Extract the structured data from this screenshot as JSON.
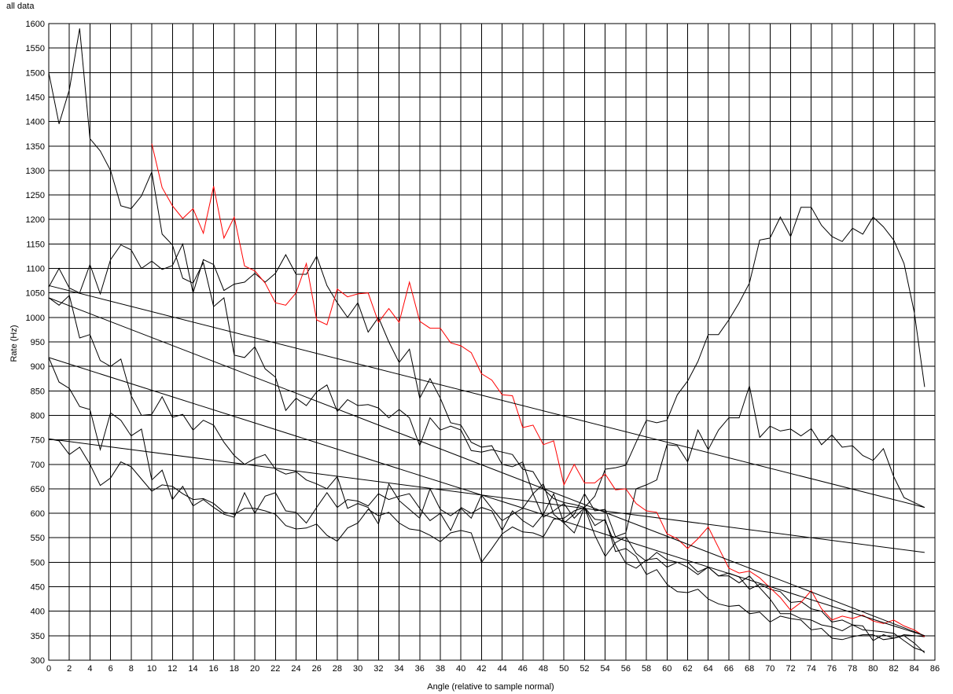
{
  "chart_data": {
    "type": "line",
    "title": "all data",
    "xlabel": "Angle (relative to sample normal)",
    "ylabel": "Rate (Hz)",
    "xlim": [
      0,
      86
    ],
    "ylim": [
      300,
      1600
    ],
    "x_ticks": [
      0,
      2,
      4,
      6,
      8,
      10,
      12,
      14,
      16,
      18,
      20,
      22,
      24,
      26,
      28,
      30,
      32,
      34,
      36,
      38,
      40,
      42,
      44,
      46,
      48,
      50,
      52,
      54,
      56,
      58,
      60,
      62,
      64,
      66,
      68,
      70,
      72,
      74,
      76,
      78,
      80,
      82,
      84,
      86
    ],
    "y_ticks": [
      300,
      350,
      400,
      450,
      500,
      550,
      600,
      650,
      700,
      750,
      800,
      850,
      900,
      950,
      1000,
      1050,
      1100,
      1150,
      1200,
      1250,
      1300,
      1350,
      1400,
      1450,
      1500,
      1550,
      1600
    ],
    "grid": true,
    "legend": "none",
    "colors": {
      "default": "#000000",
      "highlight": "#ff0000",
      "grid": "#000000"
    },
    "series": [
      {
        "color": "#000000",
        "x": [
          0,
          1,
          2,
          3,
          4,
          5,
          6,
          7,
          8,
          9,
          10,
          11,
          12,
          13,
          14,
          15,
          16,
          17,
          18,
          19,
          20,
          21,
          22,
          23,
          24,
          25,
          26,
          27,
          28,
          29,
          30,
          31,
          32,
          33,
          34,
          35,
          36,
          37,
          38,
          39,
          40,
          41,
          42,
          43,
          44,
          45,
          46,
          47,
          48,
          49,
          50,
          51,
          52,
          53,
          54,
          55,
          56,
          57,
          58,
          59,
          60,
          61,
          62,
          63,
          64,
          65,
          66,
          67,
          68,
          69,
          70,
          71,
          72,
          73,
          74,
          75,
          76,
          77,
          78,
          79,
          80,
          81,
          82,
          83,
          84,
          85
        ],
        "y": [
          1500,
          1395,
          1465,
          1590,
          1365,
          1340,
          1300,
          1228,
          1222,
          1248,
          1297,
          1170,
          1148,
          1080,
          1070,
          1112,
          1022,
          1040,
          923,
          918,
          940,
          895,
          878,
          810,
          835,
          820,
          848,
          862,
          808,
          832,
          820,
          822,
          815,
          795,
          812,
          795,
          738,
          795,
          770,
          778,
          770,
          728,
          725,
          730,
          725,
          720,
          690,
          685,
          650,
          630,
          622,
          618,
          612,
          635,
          690,
          693,
          698,
          745,
          790,
          785,
          790,
          842,
          870,
          910,
          965,
          965,
          995,
          1030,
          1070,
          1158,
          1162,
          1205,
          1165,
          1225,
          1225,
          1188,
          1165,
          1155,
          1182,
          1170,
          1205,
          1185,
          1158,
          1110,
          1010,
          858
        ]
      },
      {
        "color": "#000000",
        "x": [
          0,
          1,
          2,
          3,
          4,
          5,
          6,
          7,
          8,
          9,
          10,
          11,
          12,
          13,
          14,
          15,
          16,
          17,
          18,
          19,
          20,
          21,
          22,
          23,
          24,
          25,
          26,
          27,
          28,
          29,
          30,
          31,
          32,
          33,
          34,
          35,
          36,
          37,
          38,
          39,
          40,
          41,
          42,
          43,
          44,
          45,
          46,
          47,
          48,
          49,
          50,
          51,
          52,
          53,
          54,
          55,
          56,
          57,
          58,
          59,
          60,
          61,
          62,
          63,
          64,
          65,
          66,
          67,
          68,
          69,
          70,
          71,
          72,
          73,
          74,
          75,
          76,
          77,
          78,
          79,
          80,
          81,
          82,
          83,
          84,
          85
        ],
        "y": [
          1062,
          1100,
          1060,
          1050,
          1108,
          1048,
          1118,
          1148,
          1138,
          1100,
          1115,
          1098,
          1106,
          1150,
          1050,
          1118,
          1108,
          1055,
          1068,
          1072,
          1090,
          1072,
          1090,
          1128,
          1088,
          1088,
          1125,
          1065,
          1030,
          1000,
          1030,
          970,
          1000,
          950,
          908,
          935,
          835,
          875,
          835,
          785,
          780,
          745,
          735,
          738,
          700,
          695,
          705,
          640,
          660,
          598,
          580,
          598,
          640,
          605,
          608,
          552,
          560,
          650,
          658,
          668,
          740,
          738,
          705,
          770,
          730,
          770,
          795,
          795,
          860,
          755,
          778,
          768,
          772,
          758,
          773,
          740,
          760,
          735,
          738,
          718,
          708,
          732,
          675,
          632,
          622,
          612
        ]
      },
      {
        "color": "#000000",
        "x": [
          0,
          1,
          2,
          3,
          4,
          5,
          6,
          7,
          8,
          9,
          10,
          11,
          12,
          13,
          14,
          15,
          16,
          17,
          18,
          19,
          20,
          21,
          22,
          23,
          24,
          25,
          26,
          27,
          28,
          29,
          30,
          31,
          32,
          33,
          34,
          35,
          36,
          37,
          38,
          39,
          40,
          41,
          42,
          43,
          44,
          45,
          46,
          47,
          48,
          49,
          50,
          51,
          52,
          53,
          54,
          55,
          56,
          57,
          58,
          59,
          60,
          61,
          62,
          63,
          64,
          65,
          66,
          67,
          68,
          69,
          70,
          71,
          72,
          73,
          74,
          75,
          76,
          77,
          78,
          79,
          80,
          81,
          82,
          83,
          84,
          85
        ],
        "y": [
          1040,
          1025,
          1045,
          958,
          965,
          912,
          900,
          915,
          840,
          800,
          802,
          838,
          796,
          802,
          770,
          790,
          780,
          745,
          718,
          700,
          712,
          720,
          690,
          680,
          685,
          668,
          660,
          650,
          675,
          610,
          620,
          612,
          578,
          660,
          626,
          608,
          590,
          650,
          608,
          595,
          610,
          590,
          637,
          610,
          585,
          598,
          610,
          640,
          592,
          605,
          620,
          590,
          612,
          555,
          512,
          540,
          552,
          518,
          502,
          520,
          505,
          500,
          500,
          480,
          490,
          472,
          478,
          470,
          445,
          455,
          445,
          440,
          418,
          420,
          405,
          400,
          378,
          382,
          372,
          362,
          360,
          358,
          355,
          340,
          325,
          318
        ]
      },
      {
        "color": "#000000",
        "x": [
          0,
          1,
          2,
          3,
          4,
          5,
          6,
          7,
          8,
          9,
          10,
          11,
          12,
          13,
          14,
          15,
          16,
          17,
          18,
          19,
          20,
          21,
          22,
          23,
          24,
          25,
          26,
          27,
          28,
          29,
          30,
          31,
          32,
          33,
          34,
          35,
          36,
          37,
          38,
          39,
          40,
          41,
          42,
          43,
          44,
          45,
          46,
          47,
          48,
          49,
          50,
          51,
          52,
          53,
          54,
          55,
          56,
          57,
          58,
          59,
          60,
          61,
          62,
          63,
          64,
          65,
          66,
          67,
          68,
          69,
          70,
          71,
          72,
          73,
          74,
          75,
          76,
          77,
          78,
          79,
          80,
          81,
          82,
          83,
          84,
          85
        ],
        "y": [
          918,
          868,
          855,
          818,
          812,
          730,
          805,
          790,
          758,
          772,
          668,
          688,
          628,
          655,
          615,
          628,
          612,
          598,
          592,
          642,
          600,
          635,
          642,
          605,
          602,
          580,
          612,
          642,
          612,
          628,
          625,
          615,
          640,
          628,
          635,
          640,
          610,
          585,
          600,
          565,
          612,
          600,
          612,
          605,
          565,
          605,
          585,
          572,
          598,
          640,
          580,
          560,
          612,
          588,
          585,
          535,
          498,
          488,
          505,
          508,
          490,
          500,
          490,
          475,
          490,
          472,
          472,
          458,
          472,
          448,
          425,
          395,
          395,
          385,
          382,
          372,
          368,
          360,
          372,
          370,
          340,
          352,
          345,
          352,
          350,
          348
        ]
      },
      {
        "color": "#000000",
        "x": [
          0,
          1,
          2,
          3,
          4,
          5,
          6,
          7,
          8,
          9,
          10,
          11,
          12,
          13,
          14,
          15,
          16,
          17,
          18,
          19,
          20,
          21,
          22,
          23,
          24,
          25,
          26,
          27,
          28,
          29,
          30,
          31,
          32,
          33,
          34,
          35,
          36,
          37,
          38,
          39,
          40,
          41,
          42,
          43,
          44,
          45,
          46,
          47,
          48,
          49,
          50,
          51,
          52,
          53,
          54,
          55,
          56,
          57,
          58,
          59,
          60,
          61,
          62,
          63,
          64,
          65,
          66,
          67,
          68,
          69,
          70,
          71,
          72,
          73,
          74,
          75,
          76,
          77,
          78,
          79,
          80,
          81,
          82,
          83,
          84,
          85
        ],
        "y": [
          752,
          748,
          720,
          735,
          700,
          657,
          672,
          705,
          695,
          670,
          645,
          658,
          655,
          640,
          628,
          630,
          620,
          602,
          598,
          610,
          610,
          605,
          598,
          575,
          568,
          570,
          578,
          555,
          543,
          570,
          580,
          608,
          595,
          602,
          580,
          568,
          565,
          555,
          542,
          560,
          565,
          560,
          500,
          528,
          558,
          572,
          562,
          560,
          552,
          588,
          590,
          605,
          612,
          575,
          588,
          522,
          528,
          512,
          475,
          485,
          455,
          440,
          438,
          445,
          425,
          415,
          410,
          412,
          395,
          398,
          378,
          390,
          385,
          382,
          362,
          365,
          345,
          342,
          348,
          352,
          352,
          342,
          345,
          350,
          335,
          315
        ]
      },
      {
        "color": "#ff0000",
        "x": [
          10,
          11,
          12,
          13,
          14,
          15,
          16,
          17,
          18,
          19,
          20,
          21,
          22,
          23,
          24,
          25,
          26,
          27,
          28,
          29,
          30,
          31,
          32,
          33,
          34,
          35,
          36,
          37,
          38,
          39,
          40,
          41,
          42,
          43,
          44,
          45,
          46,
          47,
          48,
          49,
          50,
          51,
          52,
          53,
          54,
          55,
          56,
          57,
          58,
          59,
          60,
          61,
          62,
          63,
          64,
          65,
          66,
          67,
          68,
          69,
          70,
          71,
          72,
          73,
          74,
          75,
          76,
          77,
          78,
          79,
          80,
          81,
          82,
          83,
          84,
          85
        ],
        "y": [
          1355,
          1265,
          1228,
          1202,
          1222,
          1172,
          1268,
          1162,
          1205,
          1105,
          1095,
          1070,
          1030,
          1025,
          1050,
          1110,
          995,
          985,
          1058,
          1042,
          1048,
          1050,
          990,
          1018,
          990,
          1072,
          992,
          978,
          978,
          948,
          942,
          928,
          885,
          872,
          842,
          840,
          775,
          780,
          740,
          748,
          658,
          700,
          662,
          662,
          680,
          648,
          650,
          620,
          605,
          602,
          558,
          548,
          528,
          548,
          572,
          530,
          488,
          478,
          482,
          468,
          448,
          428,
          402,
          418,
          442,
          405,
          382,
          390,
          385,
          392,
          380,
          375,
          382,
          370,
          362,
          348
        ]
      },
      {
        "color": "#000000",
        "x": [
          0,
          85
        ],
        "y": [
          1065,
          612
        ]
      },
      {
        "color": "#000000",
        "x": [
          0,
          85
        ],
        "y": [
          1040,
          350
        ]
      },
      {
        "color": "#000000",
        "x": [
          0,
          85
        ],
        "y": [
          918,
          350
        ]
      },
      {
        "color": "#000000",
        "x": [
          0,
          85
        ],
        "y": [
          752,
          520
        ]
      }
    ]
  }
}
